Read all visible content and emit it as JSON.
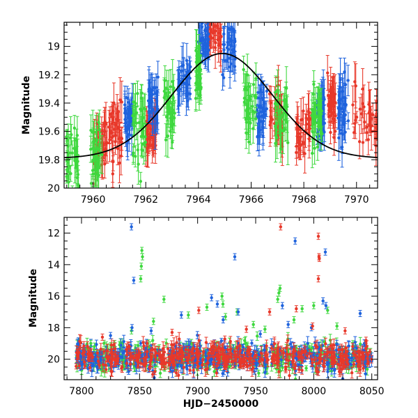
{
  "chart_data": [
    {
      "type": "scatter",
      "panel": "top",
      "title": "",
      "xlabel": "",
      "ylabel": "Magnitude",
      "xlim": [
        7958.9,
        7970.8
      ],
      "ylim": [
        20.0,
        18.83
      ],
      "y_inverted": true,
      "x_ticks": [
        7960,
        7962,
        7964,
        7966,
        7968,
        7970
      ],
      "x_tick_labels": [
        "7960",
        "7962",
        "7964",
        "7966",
        "7968",
        "7970"
      ],
      "y_ticks": [
        19,
        19.2,
        19.4,
        19.6,
        19.8,
        20
      ],
      "y_tick_labels": [
        "19",
        "19.2",
        "19.4",
        "19.6",
        "19.8",
        "20"
      ],
      "grid": false,
      "legend": "none",
      "series": [
        {
          "color": "#e8382a",
          "ranges": [
            [
              7960.0,
              7960.55,
              19.7,
              0.1
            ],
            [
              7960.6,
              7961.1,
              19.6,
              0.12
            ],
            [
              7962.0,
              7962.4,
              19.6,
              0.09
            ],
            [
              7964.3,
              7964.9,
              18.9,
              0.08
            ],
            [
              7966.7,
              7967.2,
              19.5,
              0.1
            ],
            [
              7967.7,
              7968.3,
              19.6,
              0.09
            ],
            [
              7968.9,
              7969.2,
              19.4,
              0.1
            ],
            [
              7969.8,
              7970.8,
              19.55,
              0.12
            ]
          ],
          "points_per_range": 36
        },
        {
          "color": "#1f63dd",
          "ranges": [
            [
              7961.2,
              7961.5,
              19.5,
              0.08
            ],
            [
              7962.1,
              7962.5,
              19.4,
              0.08
            ],
            [
              7963.2,
              7963.7,
              19.25,
              0.07
            ],
            [
              7964.0,
              7964.4,
              18.95,
              0.06
            ],
            [
              7964.9,
              7965.4,
              19.0,
              0.1
            ],
            [
              7966.2,
              7966.6,
              19.45,
              0.12
            ],
            [
              7968.5,
              7968.8,
              19.5,
              0.1
            ],
            [
              7969.3,
              7969.7,
              19.45,
              0.12
            ]
          ],
          "points_per_range": 34
        },
        {
          "color": "#3ed83e",
          "ranges": [
            [
              7958.95,
              7959.45,
              19.8,
              0.1
            ],
            [
              7959.9,
              7960.35,
              19.75,
              0.12
            ],
            [
              7961.5,
              7962.0,
              19.6,
              0.12
            ],
            [
              7962.7,
              7963.1,
              19.45,
              0.1
            ],
            [
              7963.9,
              7964.1,
              19.2,
              0.1
            ],
            [
              7965.7,
              7966.2,
              19.4,
              0.12
            ],
            [
              7966.9,
              7967.4,
              19.5,
              0.12
            ],
            [
              7968.3,
              7968.7,
              19.5,
              0.12
            ]
          ],
          "points_per_range": 34
        }
      ],
      "model_curve": {
        "type": "line",
        "color": "#000000",
        "peak_x": 7964.9,
        "peak_mag": 19.05,
        "base_mag": 19.79,
        "width": 1.9
      }
    },
    {
      "type": "scatter",
      "panel": "bottom",
      "title": "",
      "xlabel": "HJD−2450000",
      "ylabel": "Magnitude",
      "xlim": [
        7785,
        8055
      ],
      "ylim": [
        21.3,
        11.0
      ],
      "y_inverted": true,
      "x_ticks": [
        7800,
        7850,
        7900,
        7950,
        8000,
        8050
      ],
      "x_tick_labels": [
        "7800",
        "7850",
        "7900",
        "7950",
        "8000",
        "8050"
      ],
      "y_ticks": [
        12,
        14,
        16,
        18,
        20
      ],
      "y_tick_labels": [
        "12",
        "14",
        "16",
        "18",
        "20"
      ],
      "grid": false,
      "legend": "none",
      "baseline": {
        "x_range": [
          7795,
          8050
        ],
        "mag": 19.9,
        "scatter": 0.45,
        "points_per_series": 420
      },
      "series": [
        {
          "color": "#3ed83e",
          "outliers": [
            [
              7852.0,
              13.1
            ],
            [
              7852.5,
              13.5
            ],
            [
              7851.5,
              14.1
            ],
            [
              7851.0,
              14.9
            ],
            [
              7871.0,
              16.2
            ],
            [
              7908.0,
              16.7
            ],
            [
              7921.0,
              16.0
            ],
            [
              7921.8,
              16.5
            ],
            [
              7924.0,
              17.3
            ],
            [
              7934.0,
              17.0
            ],
            [
              7969.0,
              16.2
            ],
            [
              7970.0,
              15.8
            ],
            [
              7971.0,
              15.5
            ],
            [
              7990.0,
              16.8
            ],
            [
              8000.0,
              16.6
            ],
            [
              8012.0,
              16.9
            ],
            [
              7843.0,
              18.2
            ],
            [
              7808.0,
              19.0
            ],
            [
              7862.0,
              17.6
            ],
            [
              7948.0,
              17.8
            ],
            [
              7983.0,
              17.5
            ],
            [
              8020.0,
              17.9
            ],
            [
              7892.0,
              17.2
            ],
            [
              7958.0,
              18.1
            ]
          ]
        },
        {
          "color": "#1f63dd",
          "outliers": [
            [
              7843.0,
              11.6
            ],
            [
              7845.0,
              15.0
            ],
            [
              7932.0,
              13.5
            ],
            [
              7984.0,
              12.5
            ],
            [
              8010.0,
              13.2
            ],
            [
              7843.5,
              18.0
            ],
            [
              7886.0,
              17.2
            ],
            [
              7912.0,
              16.1
            ],
            [
              7917.0,
              16.5
            ],
            [
              7922.0,
              17.5
            ],
            [
              7935.0,
              17.0
            ],
            [
              7973.0,
              16.6
            ],
            [
              7978.0,
              17.8
            ],
            [
              8008.0,
              16.3
            ],
            [
              8010.5,
              16.6
            ],
            [
              8040.0,
              17.1
            ],
            [
              7825.0,
              18.5
            ],
            [
              7860.0,
              18.2
            ],
            [
              7954.0,
              18.4
            ],
            [
              7998.0,
              18.0
            ]
          ]
        },
        {
          "color": "#e8382a",
          "outliers": [
            [
              7971.5,
              11.6
            ],
            [
              8004.0,
              12.2
            ],
            [
              8004.5,
              13.5
            ],
            [
              8004.8,
              13.6
            ],
            [
              8004.0,
              14.9
            ],
            [
              7901.0,
              16.9
            ],
            [
              7962.0,
              17.0
            ],
            [
              7985.0,
              16.8
            ],
            [
              7999.0,
              17.9
            ],
            [
              8027.0,
              18.2
            ],
            [
              7878.0,
              18.3
            ],
            [
              7942.0,
              18.1
            ],
            [
              7818.0,
              18.6
            ],
            [
              8045.0,
              18.8
            ]
          ]
        }
      ]
    }
  ]
}
